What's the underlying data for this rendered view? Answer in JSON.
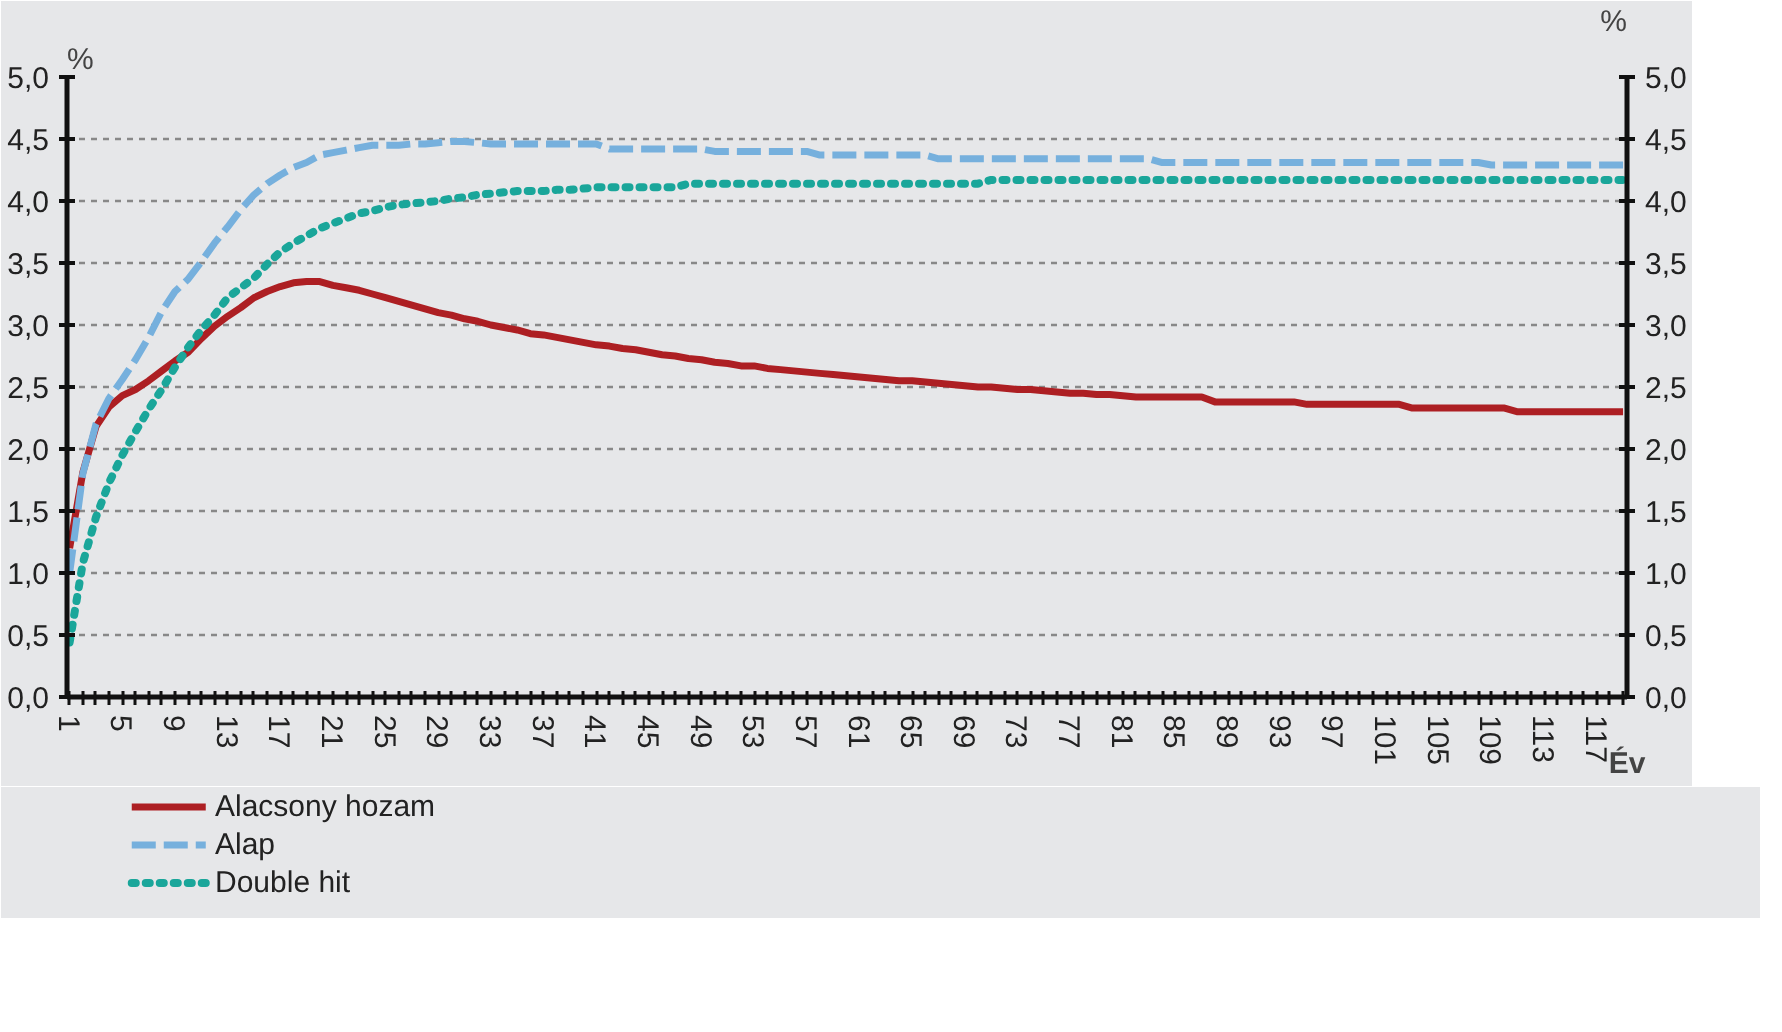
{
  "chart_data": {
    "type": "line",
    "ylabel": "%",
    "y2label": "%",
    "xlabel": "Év",
    "categories": [
      "1",
      null,
      null,
      null,
      "5",
      null,
      null,
      null,
      "9",
      null,
      null,
      null,
      "13",
      null,
      null,
      null,
      "17",
      null,
      null,
      null,
      "21",
      null,
      null,
      null,
      "25",
      null,
      null,
      null,
      "29",
      null,
      null,
      null,
      "33",
      null,
      null,
      null,
      "37",
      null,
      null,
      null,
      "41",
      null,
      null,
      null,
      "45",
      null,
      null,
      null,
      "49",
      null,
      null,
      null,
      "53",
      null,
      null,
      null,
      "57",
      null,
      null,
      null,
      "61",
      null,
      null,
      null,
      "65",
      null,
      null,
      null,
      "69",
      null,
      null,
      null,
      "73",
      null,
      null,
      null,
      "77",
      null,
      null,
      null,
      "81",
      null,
      null,
      null,
      "85",
      null,
      null,
      null,
      "89",
      null,
      null,
      null,
      "93",
      null,
      null,
      null,
      "97",
      null,
      null,
      null,
      "101",
      null,
      null,
      null,
      "105",
      null,
      null,
      null,
      "109",
      null,
      null,
      null,
      "113",
      null,
      null,
      null,
      "117",
      null,
      null
    ],
    "series": [
      {
        "name": "Alacsony hozam",
        "color": "#ad1f23",
        "line_style": "solid",
        "values": [
          1.2,
          1.81,
          2.18,
          2.34,
          2.43,
          2.48,
          2.55,
          2.63,
          2.71,
          2.78,
          2.89,
          2.99,
          3.07,
          3.14,
          3.22,
          3.27,
          3.31,
          3.34,
          3.35,
          3.35,
          3.32,
          3.3,
          3.28,
          3.25,
          3.22,
          3.19,
          3.16,
          3.13,
          3.1,
          3.08,
          3.05,
          3.03,
          3.0,
          2.98,
          2.96,
          2.93,
          2.92,
          2.9,
          2.88,
          2.86,
          2.84,
          2.83,
          2.81,
          2.8,
          2.78,
          2.76,
          2.75,
          2.73,
          2.72,
          2.7,
          2.69,
          2.67,
          2.67,
          2.65,
          2.64,
          2.63,
          2.62,
          2.61,
          2.6,
          2.59,
          2.58,
          2.57,
          2.56,
          2.55,
          2.55,
          2.54,
          2.53,
          2.52,
          2.51,
          2.5,
          2.5,
          2.49,
          2.48,
          2.48,
          2.47,
          2.46,
          2.45,
          2.45,
          2.44,
          2.44,
          2.43,
          2.42,
          2.42,
          2.42,
          2.42,
          2.42,
          2.42,
          2.38,
          2.38,
          2.38,
          2.38,
          2.38,
          2.38,
          2.38,
          2.36,
          2.36,
          2.36,
          2.36,
          2.36,
          2.36,
          2.36,
          2.36,
          2.33,
          2.33,
          2.33,
          2.33,
          2.33,
          2.33,
          2.33,
          2.33,
          2.3,
          2.3,
          2.3,
          2.3,
          2.3,
          2.3,
          2.3,
          2.3,
          2.3
        ]
      },
      {
        "name": "Alap",
        "color": "#76b0dd",
        "line_style": "dashed",
        "values": [
          1.0,
          1.8,
          2.2,
          2.41,
          2.56,
          2.72,
          2.9,
          3.11,
          3.27,
          3.37,
          3.51,
          3.66,
          3.79,
          3.93,
          4.05,
          4.14,
          4.21,
          4.27,
          4.31,
          4.37,
          4.39,
          4.41,
          4.43,
          4.45,
          4.45,
          4.45,
          4.46,
          4.46,
          4.47,
          4.48,
          4.48,
          4.47,
          4.46,
          4.46,
          4.46,
          4.46,
          4.46,
          4.46,
          4.46,
          4.46,
          4.46,
          4.42,
          4.42,
          4.42,
          4.42,
          4.42,
          4.42,
          4.42,
          4.42,
          4.4,
          4.4,
          4.4,
          4.4,
          4.4,
          4.4,
          4.4,
          4.4,
          4.37,
          4.37,
          4.37,
          4.37,
          4.37,
          4.37,
          4.37,
          4.37,
          4.37,
          4.34,
          4.34,
          4.34,
          4.34,
          4.34,
          4.34,
          4.34,
          4.34,
          4.34,
          4.34,
          4.34,
          4.34,
          4.34,
          4.34,
          4.34,
          4.34,
          4.34,
          4.31,
          4.31,
          4.31,
          4.31,
          4.31,
          4.31,
          4.31,
          4.31,
          4.31,
          4.31,
          4.31,
          4.31,
          4.31,
          4.31,
          4.31,
          4.31,
          4.31,
          4.31,
          4.31,
          4.31,
          4.31,
          4.31,
          4.31,
          4.31,
          4.31,
          4.29,
          4.29,
          4.29,
          4.29,
          4.29,
          4.29,
          4.29,
          4.29,
          4.29,
          4.29,
          4.29
        ]
      },
      {
        "name": "Double hit",
        "color": "#1aa69a",
        "line_style": "dotted",
        "values": [
          0.44,
          1.08,
          1.45,
          1.73,
          1.95,
          2.14,
          2.32,
          2.48,
          2.66,
          2.82,
          2.96,
          3.08,
          3.22,
          3.3,
          3.38,
          3.49,
          3.59,
          3.66,
          3.72,
          3.78,
          3.82,
          3.86,
          3.9,
          3.92,
          3.95,
          3.97,
          3.98,
          3.99,
          4.0,
          4.02,
          4.03,
          4.05,
          4.06,
          4.07,
          4.08,
          4.08,
          4.08,
          4.09,
          4.09,
          4.1,
          4.11,
          4.11,
          4.11,
          4.11,
          4.11,
          4.11,
          4.11,
          4.14,
          4.14,
          4.14,
          4.14,
          4.14,
          4.14,
          4.14,
          4.14,
          4.14,
          4.14,
          4.14,
          4.14,
          4.14,
          4.14,
          4.14,
          4.14,
          4.14,
          4.14,
          4.14,
          4.14,
          4.14,
          4.14,
          4.14,
          4.17,
          4.17,
          4.17,
          4.17,
          4.17,
          4.17,
          4.17,
          4.17,
          4.17,
          4.17,
          4.17,
          4.17,
          4.17,
          4.17,
          4.17,
          4.17,
          4.17,
          4.17,
          4.17,
          4.17,
          4.17,
          4.17,
          4.17,
          4.17,
          4.17,
          4.17,
          4.17,
          4.17,
          4.17,
          4.17,
          4.17,
          4.17,
          4.17,
          4.17,
          4.17,
          4.17,
          4.17,
          4.17,
          4.17,
          4.17,
          4.17,
          4.17,
          4.17,
          4.17,
          4.17,
          4.17,
          4.17,
          4.17,
          4.17
        ]
      }
    ],
    "ylim": [
      0,
      5
    ],
    "yticks": [
      {
        "value": 0,
        "label": "0,0"
      },
      {
        "value": 0.5,
        "label": "0,5"
      },
      {
        "value": 1,
        "label": "1,0"
      },
      {
        "value": 1.5,
        "label": "1,5"
      },
      {
        "value": 2,
        "label": "2,0"
      },
      {
        "value": 2.5,
        "label": "2,5"
      },
      {
        "value": 3,
        "label": "3,0"
      },
      {
        "value": 3.5,
        "label": "3,5"
      },
      {
        "value": 4,
        "label": "4,0"
      },
      {
        "value": 4.5,
        "label": "4,5"
      },
      {
        "value": 5,
        "label": "5,0"
      }
    ],
    "y2lim": [
      0,
      5
    ],
    "y2ticks": [
      {
        "value": 0,
        "label": "0,0"
      },
      {
        "value": 0.5,
        "label": "0,5"
      },
      {
        "value": 1,
        "label": "1,0"
      },
      {
        "value": 1.5,
        "label": "1,5"
      },
      {
        "value": 2,
        "label": "2,0"
      },
      {
        "value": 2.5,
        "label": "2,5"
      },
      {
        "value": 3,
        "label": "3,0"
      },
      {
        "value": 3.5,
        "label": "3,5"
      },
      {
        "value": 4,
        "label": "4,0"
      },
      {
        "value": 4.5,
        "label": "4,5"
      },
      {
        "value": 5,
        "label": "5,0"
      }
    ],
    "grid": "y",
    "legend": "bottom left",
    "marker": "none"
  }
}
